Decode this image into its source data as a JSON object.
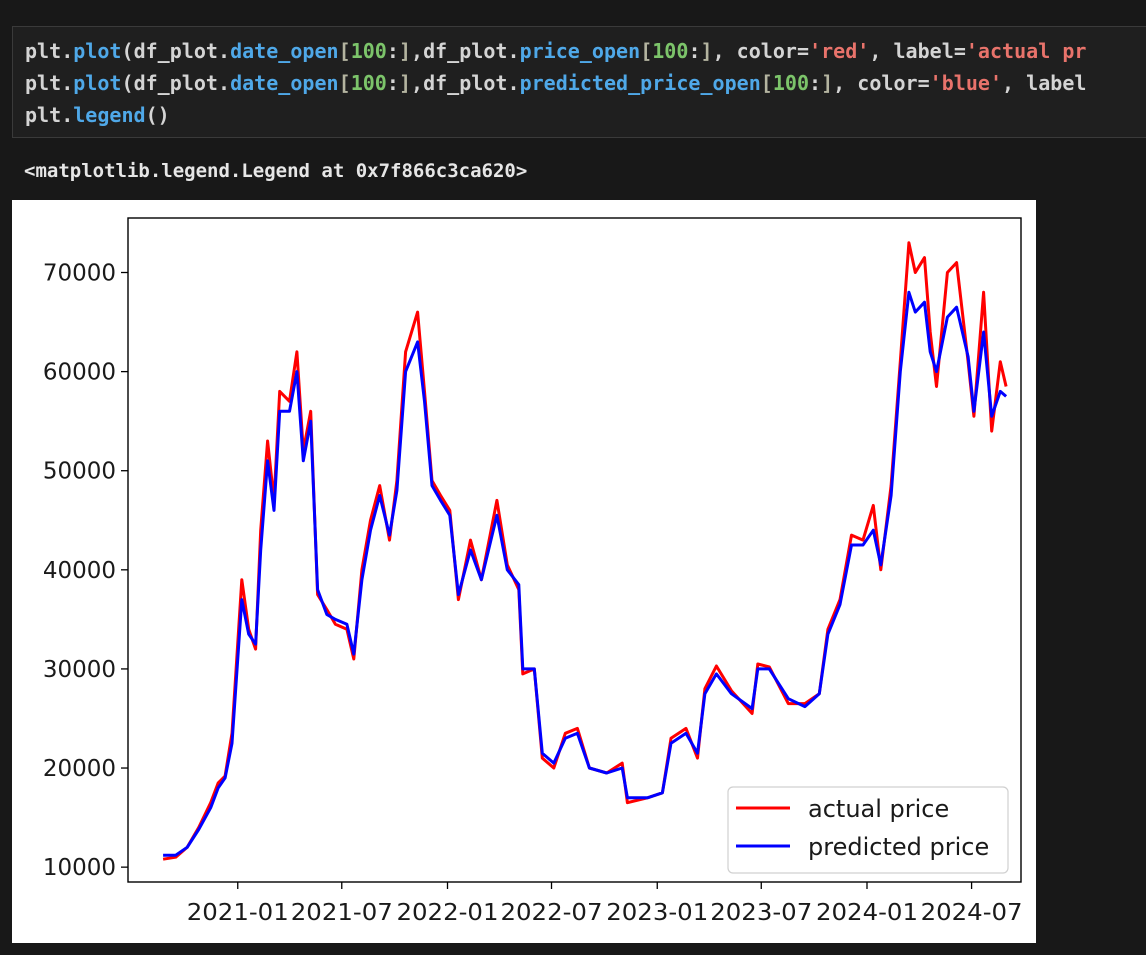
{
  "code": {
    "line1": {
      "obj": "plt",
      "dot": ".",
      "fn": "plot",
      "open": "(",
      "a1": "df_plot",
      "dot2": ".",
      "attr1": "date_open",
      "b1": "[",
      "n1": "100",
      "c1": ":",
      "b2": "]",
      "comma": ",",
      "a2": "df_plot",
      "dot3": ".",
      "attr2": "price_open",
      "b3": "[",
      "n2": "100",
      "c2": ":",
      "b4": "]",
      "rest1": ", color",
      "eq1": "=",
      "s1": "'red'",
      "rest2": ", label",
      "eq2": "=",
      "s2": "'actual pr"
    },
    "line2": {
      "obj": "plt",
      "dot": ".",
      "fn": "plot",
      "open": "(",
      "a1": "df_plot",
      "dot2": ".",
      "attr1": "date_open",
      "b1": "[",
      "n1": "100",
      "c1": ":",
      "b2": "]",
      "comma": ",",
      "a2": "df_plot",
      "dot3": ".",
      "attr2": "predicted_price_open",
      "b3": "[",
      "n2": "100",
      "c2": ":",
      "b4": "]",
      "rest1": ", color",
      "eq1": "=",
      "s1": "'blue'",
      "rest2": ", label"
    },
    "line3": {
      "obj": "plt",
      "dot": ".",
      "fn": "legend",
      "call": "()"
    }
  },
  "output": {
    "text": "<matplotlib.legend.Legend at 0x7f866c3ca620>"
  },
  "colors": {
    "actual": "#ff0000",
    "predicted": "#0000ff"
  },
  "chart_data": {
    "type": "line",
    "title": "",
    "xlabel": "",
    "ylabel": "",
    "grid": false,
    "legend_position": "lower-right",
    "xlim": [
      "2020-06-24",
      "2024-09-25"
    ],
    "ylim": [
      8500,
      75500
    ],
    "x_ticks": [
      "2021-01",
      "2021-07",
      "2022-01",
      "2022-07",
      "2023-01",
      "2023-07",
      "2024-01",
      "2024-07"
    ],
    "y_ticks": [
      10000,
      20000,
      30000,
      40000,
      50000,
      60000,
      70000
    ],
    "series": [
      {
        "name": "actual price",
        "color": "#ff0000",
        "points": [
          [
            "2020-08-24",
            10800
          ],
          [
            "2020-09-15",
            11000
          ],
          [
            "2020-10-05",
            12000
          ],
          [
            "2020-10-25",
            14000
          ],
          [
            "2020-11-15",
            16500
          ],
          [
            "2020-11-28",
            18500
          ],
          [
            "2020-12-10",
            19200
          ],
          [
            "2020-12-22",
            23500
          ],
          [
            "2021-01-08",
            39000
          ],
          [
            "2021-01-20",
            34000
          ],
          [
            "2021-02-01",
            32000
          ],
          [
            "2021-02-10",
            44000
          ],
          [
            "2021-02-22",
            53000
          ],
          [
            "2021-03-05",
            47000
          ],
          [
            "2021-03-15",
            58000
          ],
          [
            "2021-04-01",
            57000
          ],
          [
            "2021-04-14",
            62000
          ],
          [
            "2021-04-25",
            52000
          ],
          [
            "2021-05-08",
            56000
          ],
          [
            "2021-05-20",
            37500
          ],
          [
            "2021-06-05",
            36000
          ],
          [
            "2021-06-20",
            34500
          ],
          [
            "2021-07-10",
            34000
          ],
          [
            "2021-07-22",
            31000
          ],
          [
            "2021-08-05",
            40000
          ],
          [
            "2021-08-20",
            45000
          ],
          [
            "2021-09-05",
            48500
          ],
          [
            "2021-09-22",
            43000
          ],
          [
            "2021-10-05",
            49000
          ],
          [
            "2021-10-20",
            62000
          ],
          [
            "2021-11-10",
            66000
          ],
          [
            "2021-11-22",
            58000
          ],
          [
            "2021-12-05",
            49000
          ],
          [
            "2021-12-20",
            47500
          ],
          [
            "2022-01-05",
            46000
          ],
          [
            "2022-01-20",
            37000
          ],
          [
            "2022-02-10",
            43000
          ],
          [
            "2022-03-01",
            39000
          ],
          [
            "2022-03-28",
            47000
          ],
          [
            "2022-04-15",
            40500
          ],
          [
            "2022-05-05",
            38000
          ],
          [
            "2022-05-12",
            29500
          ],
          [
            "2022-06-01",
            30000
          ],
          [
            "2022-06-15",
            21000
          ],
          [
            "2022-07-05",
            20000
          ],
          [
            "2022-07-25",
            23500
          ],
          [
            "2022-08-15",
            24000
          ],
          [
            "2022-09-05",
            20000
          ],
          [
            "2022-10-05",
            19500
          ],
          [
            "2022-11-01",
            20500
          ],
          [
            "2022-11-10",
            16500
          ],
          [
            "2022-12-15",
            17000
          ],
          [
            "2023-01-10",
            17500
          ],
          [
            "2023-01-25",
            23000
          ],
          [
            "2023-02-20",
            24000
          ],
          [
            "2023-03-12",
            21000
          ],
          [
            "2023-03-25",
            28000
          ],
          [
            "2023-04-14",
            30300
          ],
          [
            "2023-05-10",
            27800
          ],
          [
            "2023-06-15",
            25500
          ],
          [
            "2023-06-25",
            30500
          ],
          [
            "2023-07-15",
            30200
          ],
          [
            "2023-08-17",
            26500
          ],
          [
            "2023-09-15",
            26500
          ],
          [
            "2023-10-10",
            27500
          ],
          [
            "2023-10-25",
            34000
          ],
          [
            "2023-11-15",
            37000
          ],
          [
            "2023-12-05",
            43500
          ],
          [
            "2023-12-25",
            43000
          ],
          [
            "2024-01-12",
            46500
          ],
          [
            "2024-01-25",
            40000
          ],
          [
            "2024-02-12",
            48500
          ],
          [
            "2024-02-28",
            61000
          ],
          [
            "2024-03-14",
            73000
          ],
          [
            "2024-03-25",
            70000
          ],
          [
            "2024-04-10",
            71500
          ],
          [
            "2024-04-20",
            64000
          ],
          [
            "2024-05-01",
            58500
          ],
          [
            "2024-05-20",
            70000
          ],
          [
            "2024-06-05",
            71000
          ],
          [
            "2024-06-25",
            61000
          ],
          [
            "2024-07-05",
            55500
          ],
          [
            "2024-07-22",
            68000
          ],
          [
            "2024-08-05",
            54000
          ],
          [
            "2024-08-20",
            61000
          ],
          [
            "2024-08-30",
            58500
          ]
        ]
      },
      {
        "name": "predicted price",
        "color": "#0000ff",
        "points": [
          [
            "2020-08-24",
            11200
          ],
          [
            "2020-09-15",
            11200
          ],
          [
            "2020-10-05",
            12000
          ],
          [
            "2020-10-25",
            13800
          ],
          [
            "2020-11-15",
            16000
          ],
          [
            "2020-11-28",
            18000
          ],
          [
            "2020-12-10",
            19000
          ],
          [
            "2020-12-22",
            22500
          ],
          [
            "2021-01-08",
            37000
          ],
          [
            "2021-01-20",
            33500
          ],
          [
            "2021-02-01",
            32500
          ],
          [
            "2021-02-10",
            42000
          ],
          [
            "2021-02-22",
            51000
          ],
          [
            "2021-03-05",
            46000
          ],
          [
            "2021-03-15",
            56000
          ],
          [
            "2021-04-01",
            56000
          ],
          [
            "2021-04-14",
            60000
          ],
          [
            "2021-04-25",
            51000
          ],
          [
            "2021-05-08",
            55000
          ],
          [
            "2021-05-20",
            38000
          ],
          [
            "2021-06-05",
            35500
          ],
          [
            "2021-06-20",
            35000
          ],
          [
            "2021-07-10",
            34500
          ],
          [
            "2021-07-22",
            31500
          ],
          [
            "2021-08-05",
            39000
          ],
          [
            "2021-08-20",
            44000
          ],
          [
            "2021-09-05",
            47500
          ],
          [
            "2021-09-22",
            43500
          ],
          [
            "2021-10-05",
            48000
          ],
          [
            "2021-10-20",
            60000
          ],
          [
            "2021-11-10",
            63000
          ],
          [
            "2021-11-22",
            57000
          ],
          [
            "2021-12-05",
            48500
          ],
          [
            "2021-12-20",
            47000
          ],
          [
            "2022-01-05",
            45500
          ],
          [
            "2022-01-20",
            37500
          ],
          [
            "2022-02-10",
            42000
          ],
          [
            "2022-03-01",
            39000
          ],
          [
            "2022-03-28",
            45500
          ],
          [
            "2022-04-15",
            40000
          ],
          [
            "2022-05-05",
            38500
          ],
          [
            "2022-05-12",
            30000
          ],
          [
            "2022-06-01",
            30000
          ],
          [
            "2022-06-15",
            21500
          ],
          [
            "2022-07-05",
            20500
          ],
          [
            "2022-07-25",
            23000
          ],
          [
            "2022-08-15",
            23500
          ],
          [
            "2022-09-05",
            20000
          ],
          [
            "2022-10-05",
            19500
          ],
          [
            "2022-11-01",
            20000
          ],
          [
            "2022-11-10",
            17000
          ],
          [
            "2022-12-15",
            17000
          ],
          [
            "2023-01-10",
            17500
          ],
          [
            "2023-01-25",
            22500
          ],
          [
            "2023-02-20",
            23500
          ],
          [
            "2023-03-12",
            21500
          ],
          [
            "2023-03-25",
            27500
          ],
          [
            "2023-04-14",
            29500
          ],
          [
            "2023-05-10",
            27500
          ],
          [
            "2023-06-15",
            26000
          ],
          [
            "2023-06-25",
            30000
          ],
          [
            "2023-07-15",
            30000
          ],
          [
            "2023-08-17",
            27000
          ],
          [
            "2023-09-15",
            26200
          ],
          [
            "2023-10-10",
            27500
          ],
          [
            "2023-10-25",
            33500
          ],
          [
            "2023-11-15",
            36500
          ],
          [
            "2023-12-05",
            42500
          ],
          [
            "2023-12-25",
            42500
          ],
          [
            "2024-01-12",
            44000
          ],
          [
            "2024-01-25",
            40500
          ],
          [
            "2024-02-12",
            47500
          ],
          [
            "2024-02-28",
            60000
          ],
          [
            "2024-03-14",
            68000
          ],
          [
            "2024-03-25",
            66000
          ],
          [
            "2024-04-10",
            67000
          ],
          [
            "2024-04-20",
            62000
          ],
          [
            "2024-05-01",
            60000
          ],
          [
            "2024-05-20",
            65500
          ],
          [
            "2024-06-05",
            66500
          ],
          [
            "2024-06-25",
            61500
          ],
          [
            "2024-07-05",
            56000
          ],
          [
            "2024-07-22",
            64000
          ],
          [
            "2024-08-05",
            55500
          ],
          [
            "2024-08-20",
            58000
          ],
          [
            "2024-08-30",
            57500
          ]
        ]
      }
    ]
  }
}
